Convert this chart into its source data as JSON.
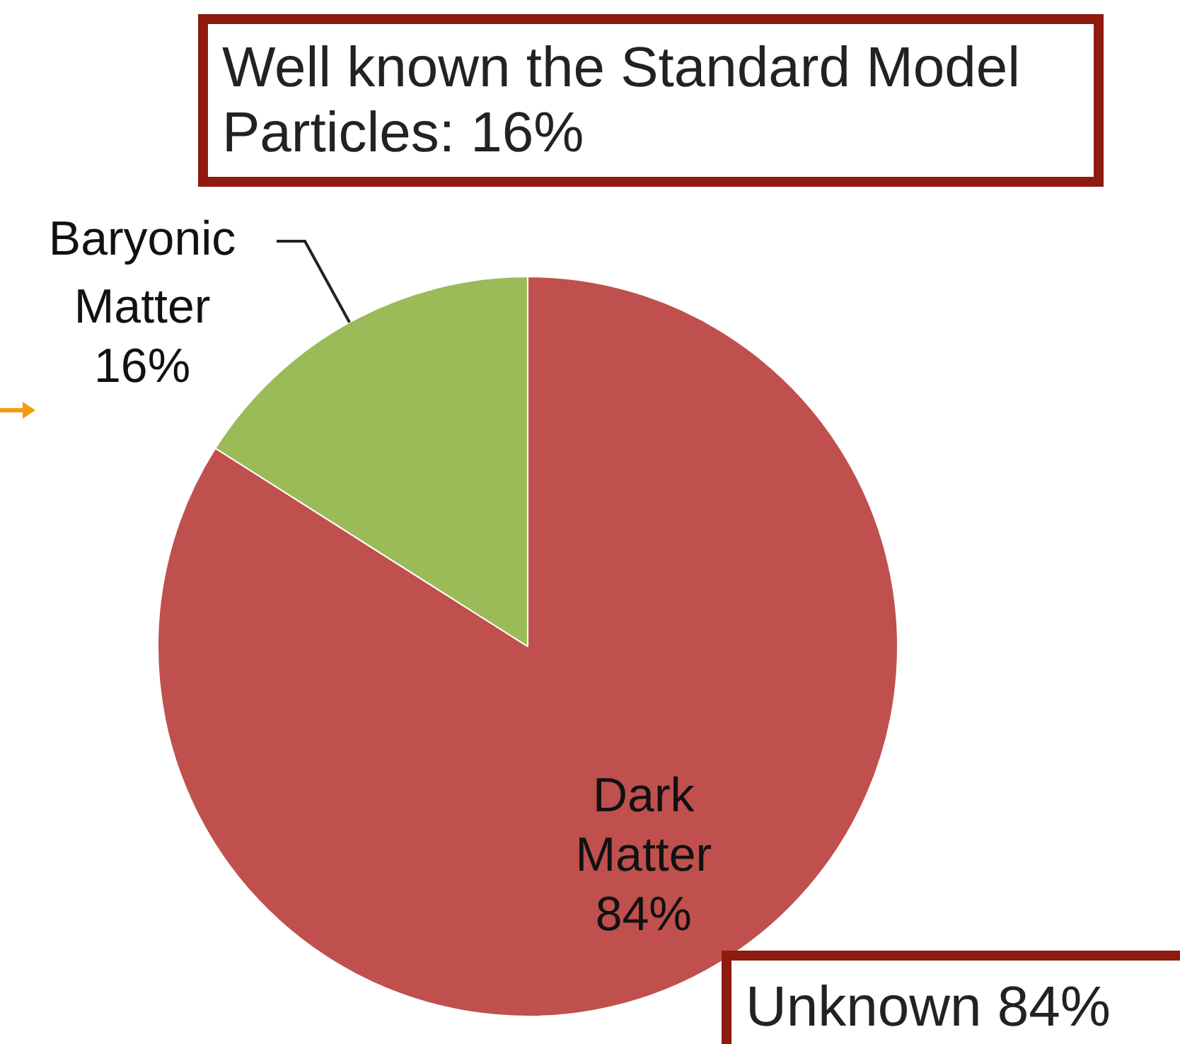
{
  "chart_data": {
    "type": "pie",
    "categories": [
      "Dark Matter",
      "Baryonic Matter"
    ],
    "values": [
      84,
      16
    ],
    "colors": [
      "#c0504d",
      "#9bbb59"
    ],
    "value_labels": [
      "84%",
      "16%"
    ],
    "legend": false,
    "annotations": [
      "Well known the Standard Model Particles: 16%",
      "Unknown 84%"
    ]
  }
}
